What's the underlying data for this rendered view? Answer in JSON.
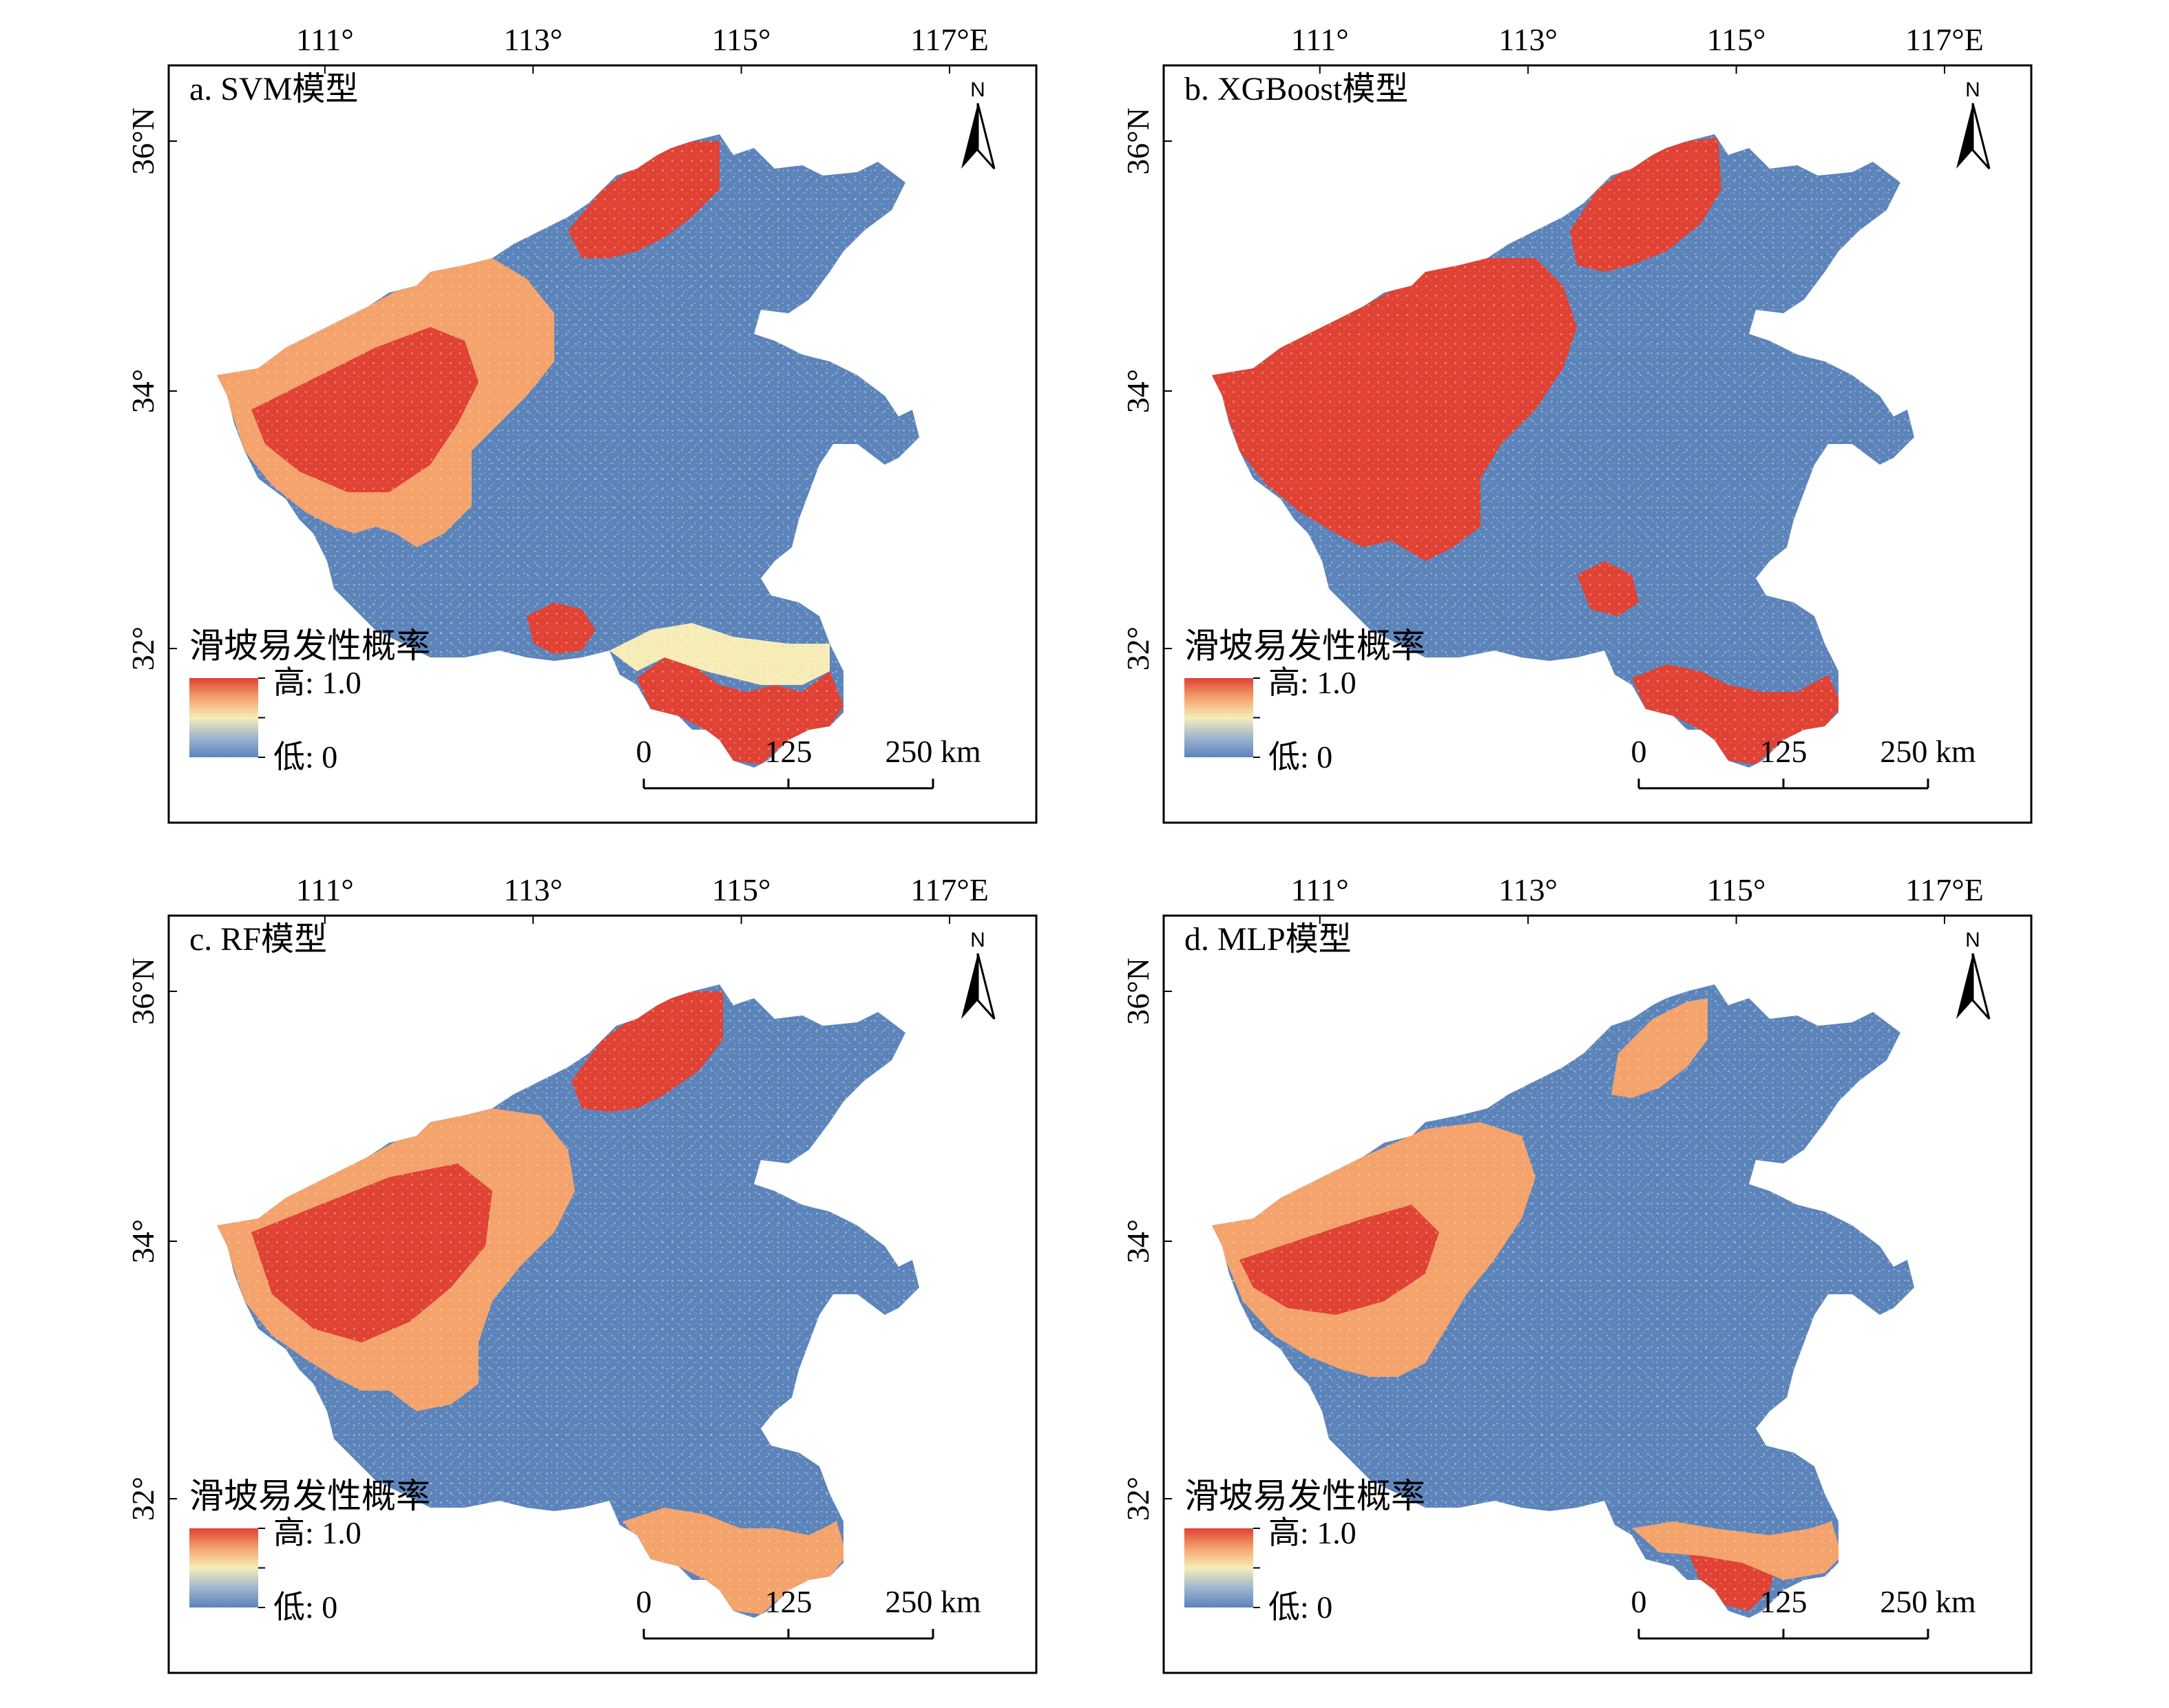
{
  "figure": {
    "panels": [
      {
        "id": "a",
        "title": "a. SVM模型",
        "x_ticks": [
          "111°",
          "113°",
          "115°",
          "117°E"
        ],
        "y_ticks": [
          "36°N",
          "34°",
          "32°"
        ],
        "legend": {
          "title": "滑坡易发性概率",
          "high": "高: 1.0",
          "low": "低: 0"
        },
        "scale_bar": {
          "labels": [
            "0",
            "125",
            "250 km"
          ]
        },
        "north_arrow": "N",
        "high_zone_pattern": "svm"
      },
      {
        "id": "b",
        "title": "b. XGBoost模型",
        "x_ticks": [
          "111°",
          "113°",
          "115°",
          "117°E"
        ],
        "y_ticks": [
          "36°N",
          "34°",
          "32°"
        ],
        "legend": {
          "title": "滑坡易发性概率",
          "high": "高: 1.0",
          "low": "低: 0"
        },
        "scale_bar": {
          "labels": [
            "0",
            "125",
            "250 km"
          ]
        },
        "north_arrow": "N",
        "high_zone_pattern": "xgboost"
      },
      {
        "id": "c",
        "title": "c. RF模型",
        "x_ticks": [
          "111°",
          "113°",
          "115°",
          "117°E"
        ],
        "y_ticks": [
          "36°N",
          "34°",
          "32°"
        ],
        "legend": {
          "title": "滑坡易发性概率",
          "high": "高: 1.0",
          "low": "低: 0"
        },
        "scale_bar": {
          "labels": [
            "0",
            "125",
            "250 km"
          ]
        },
        "north_arrow": "N",
        "high_zone_pattern": "rf"
      },
      {
        "id": "d",
        "title": "d. MLP模型",
        "x_ticks": [
          "111°",
          "113°",
          "115°",
          "117°E"
        ],
        "y_ticks": [
          "36°N",
          "34°",
          "32°"
        ],
        "legend": {
          "title": "滑坡易发性概率",
          "high": "高: 1.0",
          "low": "低: 0"
        },
        "scale_bar": {
          "labels": [
            "0",
            "125",
            "250 km"
          ]
        },
        "north_arrow": "N",
        "high_zone_pattern": "mlp"
      }
    ],
    "colors": {
      "low": "#5b84bd",
      "low_mid": "#9fb6cf",
      "mid": "#f6edb8",
      "high_mid": "#f4a36d",
      "high": "#e04235",
      "frame": "#000000"
    }
  }
}
